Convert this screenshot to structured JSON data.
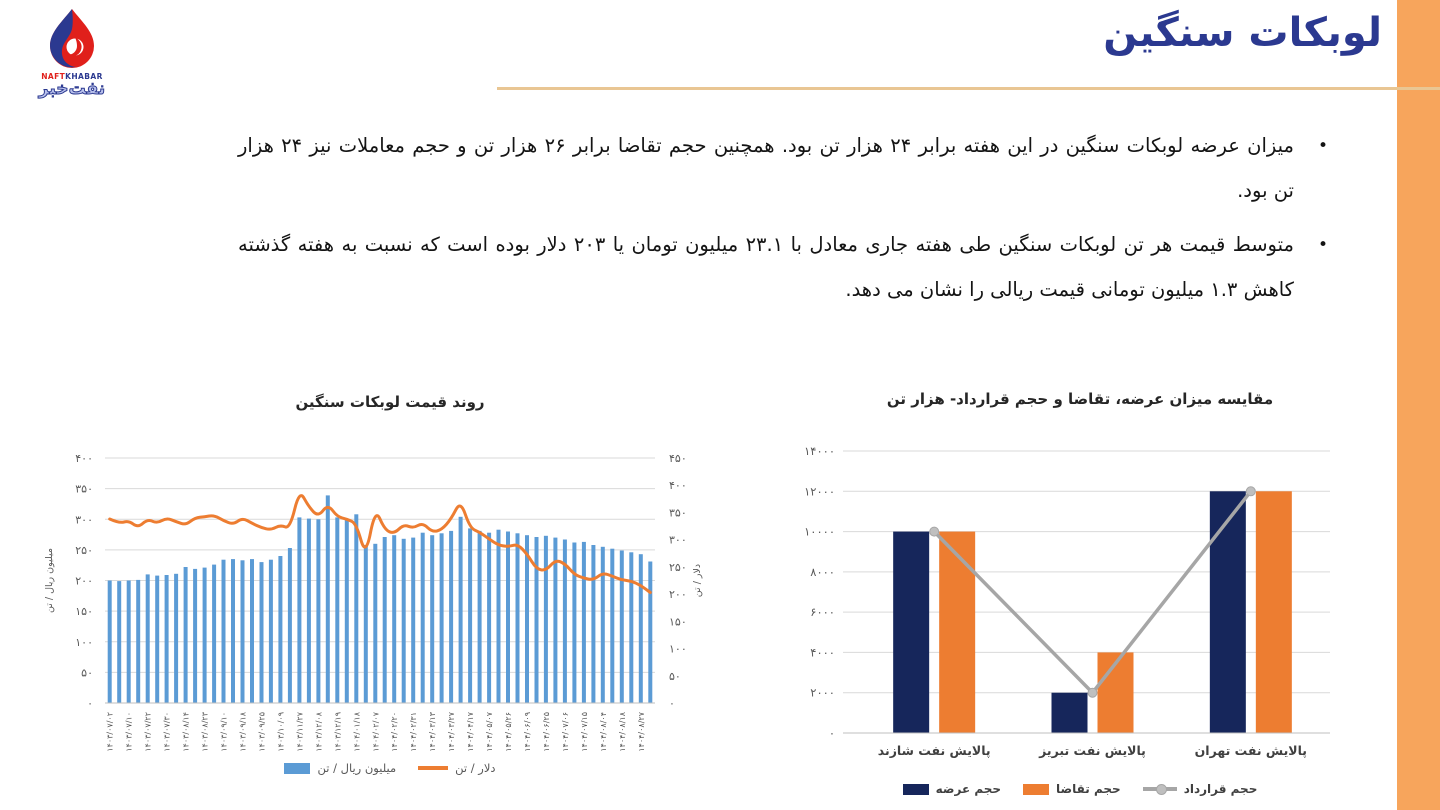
{
  "page": {
    "title": "لوبکات سنگین",
    "accent_strip_color": "#F7A55C",
    "rule_color": "#E9C693",
    "title_color": "#2B3990"
  },
  "logo": {
    "name_en_naft": "NAFT",
    "name_en_khabar": "KHABAR",
    "name_fa": "نفت‌خبر",
    "bullet_char": "•"
  },
  "bullets": [
    "میزان عرضه لوبکات سنگین در این هفته برابر ۲۴ هزار تن بود. همچنین حجم تقاضا برابر ۲۶ هزار تن و حجم معاملات نیز  ۲۴ هزار تن بود.",
    "متوسط قیمت هر تن لوبکات سنگین طی هفته جاری معادل با ۲۳.۱ میلیون تومان یا ۲۰۳ دلار بوده است که نسبت به هفته گذشته کاهش ۱.۳ میلیون تومانی قیمت ریالی را نشان می دهد."
  ],
  "chart_data": [
    {
      "type": "bar",
      "title": "روند قیمت لوبکات سنگین",
      "subtitle": "",
      "grid": true,
      "legend_position": "bottom",
      "x_labels": [
        "۱۴۰۳/۰۷/۰۲",
        "۱۴۰۳/۰۷/۱۰",
        "۱۴۰۳/۰۷/۲۲",
        "۱۴۰۳/۰۷/۳۰",
        "۱۴۰۳/۰۸/۱۴",
        "۱۴۰۳/۰۸/۲۳",
        "۱۴۰۳/۰۹/۱۰",
        "۱۴۰۳/۰۹/۱۸",
        "۱۴۰۳/۰۹/۲۵",
        "۱۴۰۳/۱۰/۰۹",
        "۱۴۰۳/۱۱/۲۷",
        "۱۴۰۳/۱۲/۰۸",
        "۱۴۰۳/۱۲/۱۹",
        "۱۴۰۴/۰۱/۱۸",
        "۱۴۰۴/۰۲/۰۷",
        "۱۴۰۴/۰۲/۲۰",
        "۱۴۰۴/۰۲/۳۱",
        "۱۴۰۴/۰۳/۱۳",
        "۱۴۰۴/۰۳/۲۷",
        "۱۴۰۴/۰۴/۱۷",
        "۱۴۰۴/۰۵/۰۷",
        "۱۴۰۴/۰۵/۲۶",
        "۱۴۰۴/۰۶/۰۹",
        "۱۴۰۴/۰۶/۲۵",
        "۱۴۰۴/۰۷/۰۶",
        "۱۴۰۴/۰۷/۱۵",
        "۱۴۰۴/۰۸/۰۴",
        "۱۴۰۴/۰۸/۱۸",
        "۱۴۰۴/۰۸/۲۷"
      ],
      "label_every_n_bars": 2,
      "series": [
        {
          "name": "میلیون ریال / تن",
          "kind": "bar",
          "axis": "left",
          "color": "#5B9BD5",
          "values": [
            200,
            199,
            200,
            201,
            210,
            208,
            209,
            211,
            222,
            219,
            221,
            226,
            234,
            235,
            233,
            235,
            230,
            234,
            240,
            253,
            303,
            301,
            300,
            339,
            303,
            300,
            308,
            258,
            260,
            271,
            274,
            268,
            270,
            278,
            274,
            277,
            281,
            304,
            285,
            281,
            278,
            283,
            280,
            277,
            274,
            271,
            273,
            270,
            267,
            262,
            263,
            258,
            255,
            252,
            249,
            246,
            243,
            231
          ]
        },
        {
          "name": "دلار / تن",
          "kind": "line",
          "axis": "right",
          "color": "#ED7D31",
          "values": [
            338,
            330,
            335,
            322,
            338,
            330,
            340,
            333,
            327,
            340,
            342,
            345,
            335,
            328,
            340,
            330,
            322,
            318,
            327,
            320,
            392,
            360,
            342,
            365,
            342,
            338,
            330,
            268,
            358,
            318,
            311,
            328,
            321,
            331,
            314,
            318,
            338,
            372,
            321,
            314,
            301,
            290,
            287,
            292,
            274,
            246,
            243,
            263,
            256,
            236,
            229,
            226,
            239,
            233,
            226,
            224,
            216,
            203
          ]
        }
      ],
      "left_axis": {
        "title": "میلیون ریال / تن",
        "min": 0,
        "max": 400,
        "step": 50,
        "ticks": [
          "۴۰۰",
          "۳۵۰",
          "۳۰۰",
          "۲۵۰",
          "۲۰۰",
          "۱۵۰",
          "۱۰۰",
          "۵۰",
          "۰"
        ]
      },
      "right_axis": {
        "title": "دلار / تن",
        "min": 0,
        "max": 450,
        "step": 50,
        "ticks": [
          "۴۵۰",
          "۴۰۰",
          "۳۵۰",
          "۳۰۰",
          "۲۵۰",
          "۲۰۰",
          "۱۵۰",
          "۱۰۰",
          "۵۰",
          "۰"
        ]
      }
    },
    {
      "type": "bar",
      "title": "مقایسه میزان عرضه، تقاضا و حجم قرارداد- هزار تن",
      "grid": true,
      "legend_position": "bottom",
      "categories": [
        "پالایش نفت شازند",
        "پالایش نفت تبریز",
        "پالایش نفت تهران"
      ],
      "series": [
        {
          "name": "حجم عرضه",
          "kind": "bar",
          "color": "#16265B",
          "values": [
            10000,
            2000,
            12000
          ]
        },
        {
          "name": "حجم تقاضا",
          "kind": "bar",
          "color": "#ED7D31",
          "values": [
            10000,
            4000,
            12000
          ]
        },
        {
          "name": "حجم قرارداد",
          "kind": "line",
          "color": "#A6A6A6",
          "values": [
            10000,
            2000,
            12000
          ]
        }
      ],
      "y_axis": {
        "min": 0,
        "max": 14000,
        "step": 2000,
        "ticks": [
          "۱۴۰۰۰",
          "۱۲۰۰۰",
          "۱۰۰۰۰",
          "۸۰۰۰",
          "۶۰۰۰",
          "۴۰۰۰",
          "۲۰۰۰",
          "۰"
        ]
      },
      "ylim": [
        0,
        14000
      ]
    }
  ]
}
